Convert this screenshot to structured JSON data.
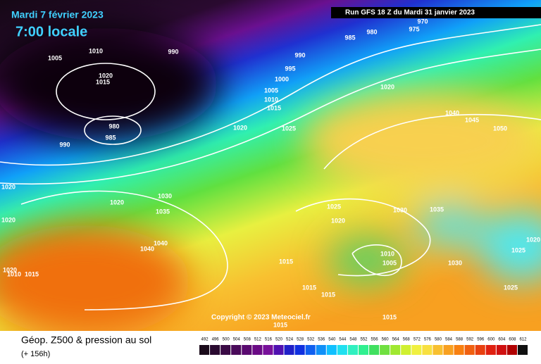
{
  "header": {
    "date": "Mardi 7 février 2023",
    "time": "7:00 locale",
    "run": "Run GFS 18 Z du Mardi 31 janvier 2023"
  },
  "copyright": "Copyright © 2023 Meteociel.fr",
  "footer": {
    "title": "Géop. Z500 & pression au sol",
    "lead": "(+ 156h)"
  },
  "legend": {
    "labels": [
      492,
      496,
      500,
      504,
      508,
      512,
      516,
      520,
      524,
      528,
      532,
      536,
      540,
      544,
      548,
      552,
      556,
      560,
      564,
      568,
      572,
      576,
      580,
      584,
      588,
      592,
      596,
      600,
      604,
      608,
      612
    ],
    "colors": [
      "#1a0a1a",
      "#2a0a30",
      "#3a0a45",
      "#4a0a5a",
      "#5a0a70",
      "#6a0a85",
      "#78109a",
      "#5010b0",
      "#2020c8",
      "#1030e0",
      "#1060f0",
      "#1090f8",
      "#10c0ff",
      "#20e0f0",
      "#30f0c0",
      "#30f090",
      "#40e060",
      "#70e040",
      "#a0e830",
      "#d0f030",
      "#f0f040",
      "#f8e040",
      "#f8c030",
      "#f8a020",
      "#f88010",
      "#f06010",
      "#e84010",
      "#e02010",
      "#d01010",
      "#b00000",
      "#101010"
    ]
  },
  "isobars": [
    970,
    975,
    980,
    985,
    990,
    990,
    1010,
    1005,
    1020,
    1015,
    995,
    1000,
    1005,
    1010,
    1015,
    1020,
    1025,
    980,
    985,
    990,
    1020,
    1040,
    1045,
    1050,
    1020,
    1020,
    1020,
    1030,
    1035,
    1040,
    1040,
    1025,
    1030,
    1035,
    1020,
    1010,
    1005,
    1015,
    1030,
    1025,
    1020,
    1015,
    1015,
    1025,
    1015,
    1015,
    1015,
    1010,
    1020
  ]
}
